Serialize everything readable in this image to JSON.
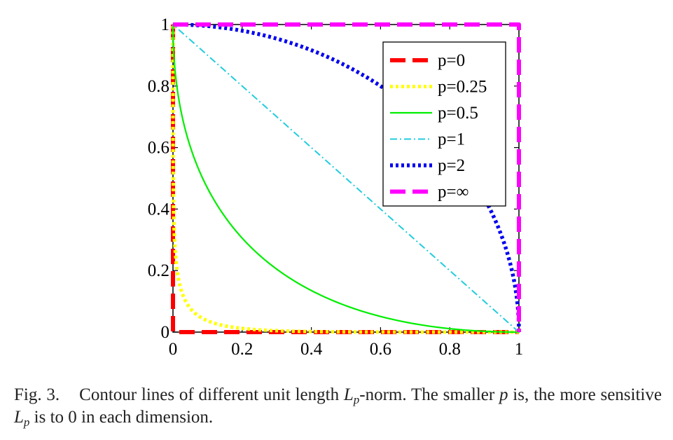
{
  "caption": {
    "label": "Fig. 3.",
    "text_1": "Contour lines of different unit length ",
    "L": "L",
    "p": "p",
    "text_2": "-norm. The smaller ",
    "text_3": " is, the more sensitive ",
    "text_4": " is to 0 in each dimension."
  },
  "colors": {
    "p0": "#ff0000",
    "p025": "#ffff00",
    "p05": "#00ee00",
    "p1": "#22ccdd",
    "p2": "#0000ee",
    "pinf": "#ff00ff"
  },
  "chart_data": {
    "type": "line",
    "title": "",
    "xlabel": "",
    "ylabel": "",
    "xlim": [
      0,
      1
    ],
    "ylim": [
      0,
      1
    ],
    "xticks": [
      "0",
      "0.2",
      "0.4",
      "0.6",
      "0.8",
      "1"
    ],
    "yticks": [
      "0",
      "0.2",
      "0.4",
      "0.6",
      "0.8",
      "1"
    ],
    "grid": false,
    "legend_position": "top-right",
    "series": [
      {
        "name": "p=0",
        "exponent": 0,
        "style": "dashed",
        "color": "#ff0000"
      },
      {
        "name": "p=0.25",
        "exponent": 0.25,
        "style": "dotted",
        "color": "#ffff00"
      },
      {
        "name": "p=0.5",
        "exponent": 0.5,
        "style": "solid",
        "color": "#00ee00"
      },
      {
        "name": "p=1",
        "exponent": 1,
        "style": "dash-dot",
        "color": "#22ccdd"
      },
      {
        "name": "p=2",
        "exponent": 2,
        "style": "dotted",
        "color": "#0000ee"
      },
      {
        "name": "p=∞",
        "exponent": "inf",
        "style": "dashed",
        "color": "#ff00ff"
      }
    ]
  }
}
